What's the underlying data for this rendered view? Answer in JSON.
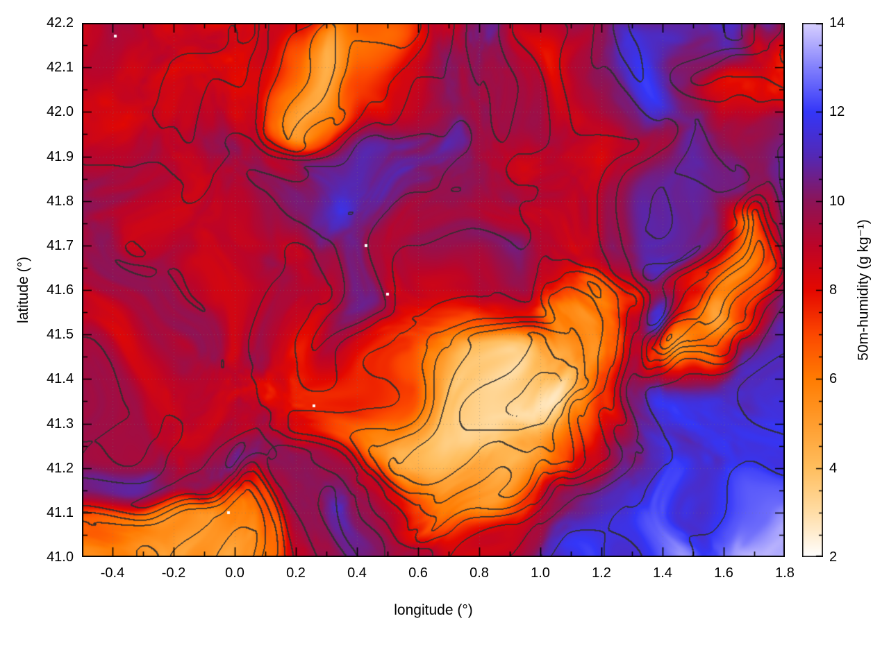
{
  "chart_data": {
    "type": "heatmap",
    "title": "",
    "xlabel": "longitude (°)",
    "ylabel": "latitude (°)",
    "x_range": [
      -0.5,
      1.8
    ],
    "y_range": [
      41.0,
      42.2
    ],
    "grid_lines": true,
    "legend": null,
    "x_ticks": {
      "major": [
        -0.4,
        -0.2,
        0.0,
        0.2,
        0.4,
        0.6,
        0.8,
        1.0,
        1.2,
        1.4,
        1.6,
        1.8
      ],
      "labels": [
        "-0.4",
        "-0.2",
        "0.0",
        "0.2",
        "0.4",
        "0.6",
        "0.8",
        "1.0",
        "1.2",
        "1.4",
        "1.6",
        "1.8"
      ],
      "minor_step": 0.1
    },
    "y_ticks": {
      "major": [
        41.0,
        41.1,
        41.2,
        41.3,
        41.4,
        41.5,
        41.6,
        41.7,
        41.8,
        41.9,
        42.0,
        42.1,
        42.2
      ],
      "labels": [
        "41.0",
        "41.1",
        "41.2",
        "41.3",
        "41.4",
        "41.5",
        "41.6",
        "41.7",
        "41.8",
        "41.9",
        "42.0",
        "42.1",
        "42.2"
      ],
      "minor_step": 0.05
    },
    "colorbar": {
      "label": "50m-humidity (g kg⁻¹)",
      "range": [
        2,
        14
      ],
      "ticks": {
        "major": [
          2,
          4,
          6,
          8,
          10,
          12,
          14
        ],
        "labels": [
          "2",
          "4",
          "6",
          "8",
          "10",
          "12",
          "14"
        ],
        "minor_step": 0.5
      },
      "palette": [
        {
          "value": 2,
          "color": "#ffffff"
        },
        {
          "value": 3,
          "color": "#ffdda6"
        },
        {
          "value": 4,
          "color": "#ffbe5e"
        },
        {
          "value": 5,
          "color": "#ff9d2e"
        },
        {
          "value": 6,
          "color": "#ff7c02"
        },
        {
          "value": 7,
          "color": "#fc4800"
        },
        {
          "value": 8,
          "color": "#e40800"
        },
        {
          "value": 9,
          "color": "#bc0428"
        },
        {
          "value": 10,
          "color": "#8c1458"
        },
        {
          "value": 11,
          "color": "#5428b4"
        },
        {
          "value": 12,
          "color": "#3436f8"
        },
        {
          "value": 13,
          "color": "#8280fc"
        },
        {
          "value": 14,
          "color": "#d8d0fe"
        }
      ]
    },
    "grid": {
      "units": "g kg⁻¹",
      "lon": {
        "start": -0.5,
        "step": 0.1,
        "count": 24
      },
      "lat": {
        "start": 42.2,
        "step": -0.1,
        "count": 13
      },
      "values": [
        [
          8.6,
          8.4,
          8.4,
          8.5,
          8.4,
          8.2,
          8.0,
          7.8,
          8.4,
          8.6,
          9.2,
          8.6,
          9.6,
          10.4,
          10.6,
          10.0,
          9.4,
          10.0,
          9.0,
          9.6,
          11.0,
          11.4,
          10.0,
          8.2
        ],
        [
          8.6,
          8.5,
          8.4,
          8.3,
          8.4,
          8.1,
          8.3,
          6.2,
          5.2,
          6.8,
          8.6,
          9.0,
          9.6,
          10.2,
          10.4,
          9.2,
          8.6,
          9.6,
          10.4,
          11.0,
          10.4,
          11.2,
          9.0,
          7.6
        ],
        [
          8.7,
          8.5,
          8.5,
          8.4,
          8.5,
          8.5,
          8.3,
          6.6,
          5.8,
          7.6,
          8.8,
          9.0,
          9.6,
          10.0,
          10.4,
          10.0,
          9.0,
          9.6,
          10.0,
          11.4,
          10.0,
          8.2,
          8.6,
          8.0
        ],
        [
          9.0,
          8.9,
          8.7,
          8.6,
          8.8,
          9.0,
          9.4,
          9.0,
          9.6,
          10.0,
          10.0,
          10.0,
          10.4,
          10.0,
          9.6,
          9.0,
          9.0,
          8.6,
          9.0,
          9.6,
          11.0,
          10.0,
          9.6,
          10.4
        ],
        [
          9.0,
          9.2,
          9.0,
          8.8,
          9.0,
          9.5,
          10.0,
          10.3,
          10.5,
          10.5,
          10.3,
          10.0,
          10.0,
          10.3,
          10.0,
          9.5,
          9.0,
          9.0,
          10.0,
          11.0,
          11.4,
          11.0,
          10.4,
          11.0
        ],
        [
          9.3,
          9.1,
          9.0,
          9.0,
          9.3,
          9.0,
          9.5,
          8.6,
          9.6,
          10.0,
          9.6,
          9.0,
          9.5,
          9.5,
          9.5,
          9.0,
          8.5,
          8.6,
          9.6,
          11.4,
          10.4,
          6.6,
          9.0,
          11.4
        ],
        [
          9.3,
          9.2,
          9.0,
          9.0,
          9.2,
          9.0,
          8.7,
          8.5,
          9.0,
          10.4,
          10.0,
          8.6,
          8.0,
          8.5,
          9.0,
          8.0,
          7.0,
          6.2,
          8.0,
          10.4,
          8.0,
          5.6,
          7.0,
          11.0
        ],
        [
          9.2,
          9.0,
          9.2,
          9.0,
          9.0,
          9.2,
          9.0,
          8.5,
          8.0,
          9.4,
          8.0,
          7.5,
          7.0,
          7.5,
          8.0,
          6.0,
          5.6,
          6.6,
          9.0,
          11.0,
          7.6,
          5.6,
          8.0,
          11.4
        ],
        [
          9.0,
          9.2,
          9.0,
          9.3,
          9.0,
          9.0,
          8.7,
          8.5,
          8.0,
          8.0,
          7.5,
          6.0,
          4.6,
          4.0,
          4.6,
          5.0,
          6.0,
          7.0,
          9.6,
          7.0,
          5.0,
          6.6,
          11.0,
          11.5
        ],
        [
          9.2,
          9.0,
          9.3,
          9.0,
          9.2,
          9.0,
          9.5,
          8.7,
          8.0,
          7.5,
          6.0,
          5.0,
          4.0,
          3.0,
          2.9,
          3.2,
          5.0,
          7.0,
          10.4,
          11.4,
          11.4,
          11.4,
          11.5,
          12.0
        ],
        [
          10.0,
          10.4,
          10.0,
          10.5,
          10.5,
          11.0,
          10.5,
          10.0,
          10.5,
          10.0,
          9.0,
          7.0,
          5.5,
          4.6,
          5.0,
          6.0,
          8.0,
          10.4,
          11.0,
          11.5,
          12.0,
          12.0,
          12.0,
          12.4
        ],
        [
          6.6,
          6.0,
          5.6,
          6.0,
          5.6,
          5.6,
          7.0,
          9.6,
          10.4,
          11.0,
          10.0,
          8.0,
          6.6,
          5.6,
          7.6,
          9.6,
          10.4,
          11.0,
          11.4,
          12.0,
          12.0,
          12.4,
          12.4,
          12.5
        ],
        [
          6.0,
          5.2,
          5.6,
          5.0,
          4.6,
          5.0,
          6.6,
          9.0,
          10.0,
          11.0,
          10.4,
          9.5,
          9.5,
          8.5,
          9.0,
          10.0,
          11.0,
          11.5,
          12.0,
          12.4,
          12.5,
          13.0,
          13.0,
          13.0
        ]
      ]
    },
    "contours": {
      "level_min": 3,
      "level_max": 12,
      "level_step": 1.0,
      "color": "#2e2e2e"
    },
    "missing_points": [
      {
        "lon": -0.39,
        "lat": 42.17
      },
      {
        "lon": 0.43,
        "lat": 41.7
      },
      {
        "lon": 0.5,
        "lat": 41.59
      },
      {
        "lon": 0.26,
        "lat": 41.34
      },
      {
        "lon": -0.02,
        "lat": 41.1
      }
    ],
    "noise": {
      "seed": 13,
      "amplitude": 1.1
    }
  }
}
